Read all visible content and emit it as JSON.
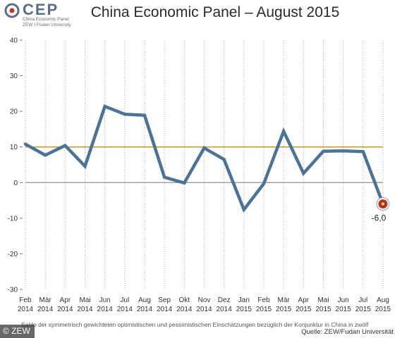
{
  "logo": {
    "text": "CEP",
    "subtitle_line1": "China Economic Panel",
    "subtitle_line2": "ZEW I Fudan University",
    "colors": {
      "mark": "#5a6d8a",
      "accent": "#c0392b"
    }
  },
  "title": "China Economic Panel – August 2015",
  "footnote": "Saldo der symmetrisch gewichteten optimistischen und pessimistischen Einschätzungen bezüglich der Konjunktur in China in zwölf",
  "source": "Quelle: ZEW/Fudan Universität",
  "copyright": "© ZEW",
  "chart_data": {
    "type": "line",
    "categories": [
      [
        "Feb",
        "2014"
      ],
      [
        "Mär",
        "2014"
      ],
      [
        "Apr",
        "2014"
      ],
      [
        "Mai",
        "2014"
      ],
      [
        "Jun",
        "2014"
      ],
      [
        "Jul",
        "2014"
      ],
      [
        "Aug",
        "2014"
      ],
      [
        "Sep",
        "2014"
      ],
      [
        "Okt",
        "2014"
      ],
      [
        "Nov",
        "2014"
      ],
      [
        "Dez",
        "2014"
      ],
      [
        "Jan",
        "2015"
      ],
      [
        "Feb",
        "2015"
      ],
      [
        "Mär",
        "2015"
      ],
      [
        "Apr",
        "2015"
      ],
      [
        "Mai",
        "2015"
      ],
      [
        "Jun",
        "2015"
      ],
      [
        "Jul",
        "2015"
      ],
      [
        "Aug",
        "2015"
      ]
    ],
    "series": [
      {
        "values": [
          10.8,
          7.7,
          10.4,
          4.6,
          21.4,
          19.2,
          18.9,
          1.5,
          -0.1,
          9.7,
          6.5,
          -7.6,
          -0.3,
          14.4,
          2.6,
          8.8,
          8.9,
          8.7,
          -6.0
        ],
        "color": "#4a7398"
      }
    ],
    "reference_line": {
      "value": 10,
      "color": "#c79a2b"
    },
    "zero_line_color": "#8f8f8f",
    "ylim": [
      -30,
      40
    ],
    "yticks": [
      40,
      30,
      20,
      10,
      0,
      -10,
      -20,
      -30
    ],
    "ytick_labels": [
      "40",
      "30",
      "20",
      "10",
      "0",
      "-10",
      "-20",
      "-30"
    ],
    "vertical_grid": "dotted",
    "last_value_label": "-6,0",
    "marker_colors": {
      "fill": "#b5332b",
      "ring": "#f2c94c"
    }
  }
}
